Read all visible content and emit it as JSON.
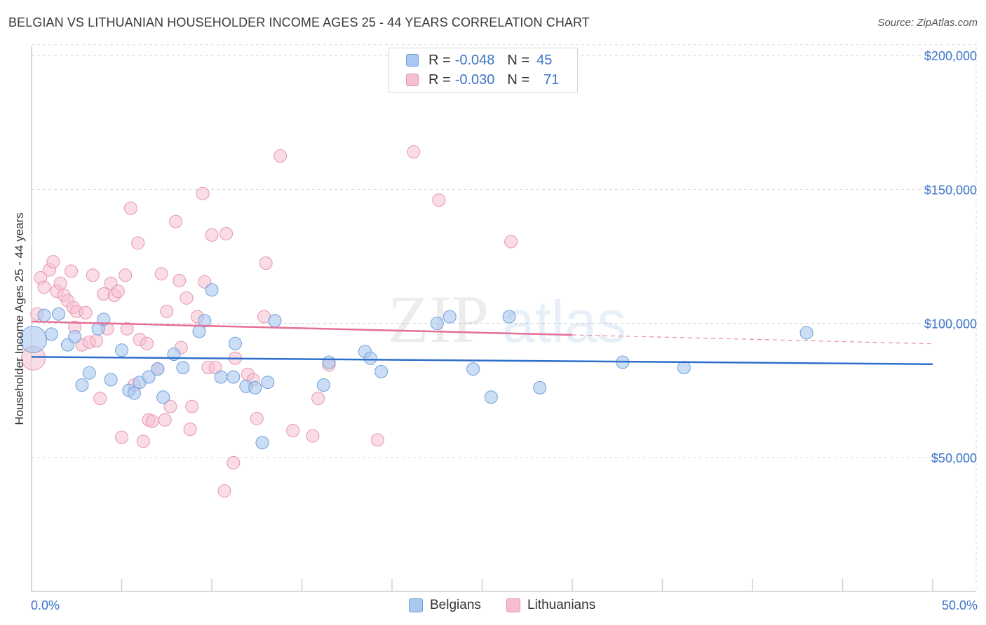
{
  "header": {
    "title": "BELGIAN VS LITHUANIAN HOUSEHOLDER INCOME AGES 25 - 44 YEARS CORRELATION CHART",
    "source": "Source: ZipAtlas.com"
  },
  "watermark": {
    "zip": "ZIP",
    "atlas": "atlas"
  },
  "legend": {
    "rows": [
      {
        "r_label": "R =",
        "r_value": "-0.048",
        "n_label": "N =",
        "n_value": "45"
      },
      {
        "r_label": "R =",
        "r_value": "-0.030",
        "n_label": "N =",
        "n_value": "71"
      }
    ]
  },
  "bottom_legend": {
    "belgians": "Belgians",
    "lithuanians": "Lithuanians"
  },
  "colors": {
    "belgian_fill": "#a9c8f0",
    "belgian_stroke": "#6f9fd8",
    "belgian_line": "#2f6fcc",
    "lithuanian_fill": "#f6bfd0",
    "lithuanian_stroke": "#e795b0",
    "lithuanian_line": "#e56f96",
    "tick_label": "#3b74c9",
    "grid": "#d9d9d9"
  },
  "chart_data": {
    "type": "scatter",
    "title": "BELGIAN VS LITHUANIAN HOUSEHOLDER INCOME AGES 25 - 44 YEARS CORRELATION CHART",
    "xlabel": "",
    "ylabel": "Householder Income Ages 25 - 44 years",
    "xlim": [
      0,
      50
    ],
    "ylim": [
      0,
      205000
    ],
    "x_tick_labels": [
      "0.0%",
      "50.0%"
    ],
    "y_ticks": [
      {
        "value": 50000,
        "label": "$50,000"
      },
      {
        "value": 100000,
        "label": "$100,000"
      },
      {
        "value": 150000,
        "label": "$150,000"
      },
      {
        "value": 200000,
        "label": "$200,000"
      }
    ],
    "series": [
      {
        "name": "Belgians",
        "r": -0.048,
        "n": 45,
        "trend": {
          "x": [
            0,
            50
          ],
          "y": [
            87500,
            84800
          ]
        },
        "points": [
          {
            "x": 0.1,
            "y": 94000,
            "big": true
          },
          {
            "x": 0.7,
            "y": 103000
          },
          {
            "x": 1.1,
            "y": 96000
          },
          {
            "x": 1.5,
            "y": 103500
          },
          {
            "x": 2.0,
            "y": 92000
          },
          {
            "x": 2.4,
            "y": 95000
          },
          {
            "x": 2.8,
            "y": 77000
          },
          {
            "x": 3.2,
            "y": 81500
          },
          {
            "x": 3.7,
            "y": 98000
          },
          {
            "x": 4.0,
            "y": 101500
          },
          {
            "x": 4.4,
            "y": 79000
          },
          {
            "x": 5.0,
            "y": 90000
          },
          {
            "x": 5.4,
            "y": 75000
          },
          {
            "x": 5.7,
            "y": 74000
          },
          {
            "x": 6.0,
            "y": 78000
          },
          {
            "x": 6.5,
            "y": 80000
          },
          {
            "x": 7.0,
            "y": 83000
          },
          {
            "x": 7.3,
            "y": 72500
          },
          {
            "x": 7.9,
            "y": 88500
          },
          {
            "x": 8.4,
            "y": 83500
          },
          {
            "x": 9.3,
            "y": 97000
          },
          {
            "x": 9.6,
            "y": 101000
          },
          {
            "x": 10.0,
            "y": 112500
          },
          {
            "x": 10.5,
            "y": 80000
          },
          {
            "x": 11.2,
            "y": 80000
          },
          {
            "x": 11.3,
            "y": 92500
          },
          {
            "x": 11.9,
            "y": 76500
          },
          {
            "x": 12.4,
            "y": 76000
          },
          {
            "x": 12.8,
            "y": 55500
          },
          {
            "x": 13.1,
            "y": 78000
          },
          {
            "x": 13.5,
            "y": 101000
          },
          {
            "x": 16.5,
            "y": 85500
          },
          {
            "x": 16.2,
            "y": 77000
          },
          {
            "x": 18.5,
            "y": 89500
          },
          {
            "x": 18.8,
            "y": 87000
          },
          {
            "x": 19.4,
            "y": 82000
          },
          {
            "x": 22.5,
            "y": 100000
          },
          {
            "x": 23.2,
            "y": 102500
          },
          {
            "x": 24.5,
            "y": 83000
          },
          {
            "x": 25.5,
            "y": 72500
          },
          {
            "x": 26.5,
            "y": 102500
          },
          {
            "x": 28.2,
            "y": 76000
          },
          {
            "x": 32.8,
            "y": 85500
          },
          {
            "x": 36.2,
            "y": 83500
          },
          {
            "x": 43.0,
            "y": 96500
          }
        ]
      },
      {
        "name": "Lithuanians",
        "r": -0.03,
        "n": 71,
        "trend": {
          "x": [
            0,
            30
          ],
          "y": [
            100700,
            95700
          ]
        },
        "trend_dashed": {
          "x": [
            30,
            50
          ],
          "y": [
            95700,
            92400
          ]
        },
        "points": [
          {
            "x": 0.1,
            "y": 87000,
            "big": true
          },
          {
            "x": 0.3,
            "y": 103500
          },
          {
            "x": 0.5,
            "y": 117000
          },
          {
            "x": 0.7,
            "y": 113500
          },
          {
            "x": 1.0,
            "y": 120000
          },
          {
            "x": 1.2,
            "y": 123000
          },
          {
            "x": 1.4,
            "y": 112000
          },
          {
            "x": 1.6,
            "y": 115000
          },
          {
            "x": 1.8,
            "y": 110500
          },
          {
            "x": 2.0,
            "y": 108500
          },
          {
            "x": 2.2,
            "y": 119500
          },
          {
            "x": 2.3,
            "y": 106000
          },
          {
            "x": 2.5,
            "y": 104500
          },
          {
            "x": 2.8,
            "y": 92000
          },
          {
            "x": 3.0,
            "y": 104000
          },
          {
            "x": 3.2,
            "y": 93000
          },
          {
            "x": 3.4,
            "y": 118000
          },
          {
            "x": 3.6,
            "y": 93500
          },
          {
            "x": 3.8,
            "y": 72000
          },
          {
            "x": 4.0,
            "y": 111000
          },
          {
            "x": 4.2,
            "y": 98000
          },
          {
            "x": 4.4,
            "y": 115000
          },
          {
            "x": 4.6,
            "y": 110500
          },
          {
            "x": 4.8,
            "y": 112000
          },
          {
            "x": 5.0,
            "y": 57500
          },
          {
            "x": 5.2,
            "y": 118000
          },
          {
            "x": 5.3,
            "y": 98000
          },
          {
            "x": 5.5,
            "y": 143000
          },
          {
            "x": 5.7,
            "y": 77000
          },
          {
            "x": 5.9,
            "y": 130000
          },
          {
            "x": 6.0,
            "y": 94000
          },
          {
            "x": 6.2,
            "y": 56000
          },
          {
            "x": 6.4,
            "y": 92500
          },
          {
            "x": 6.5,
            "y": 64000
          },
          {
            "x": 6.7,
            "y": 63500
          },
          {
            "x": 7.0,
            "y": 83000
          },
          {
            "x": 7.2,
            "y": 118500
          },
          {
            "x": 7.4,
            "y": 64000
          },
          {
            "x": 7.5,
            "y": 104500
          },
          {
            "x": 7.7,
            "y": 69000
          },
          {
            "x": 8.0,
            "y": 138000
          },
          {
            "x": 8.2,
            "y": 116000
          },
          {
            "x": 8.3,
            "y": 91000
          },
          {
            "x": 8.6,
            "y": 109500
          },
          {
            "x": 8.8,
            "y": 60500
          },
          {
            "x": 8.9,
            "y": 69000
          },
          {
            "x": 9.2,
            "y": 102500
          },
          {
            "x": 9.6,
            "y": 115500
          },
          {
            "x": 9.5,
            "y": 148500
          },
          {
            "x": 9.8,
            "y": 83500
          },
          {
            "x": 10.0,
            "y": 133000
          },
          {
            "x": 10.2,
            "y": 83500
          },
          {
            "x": 10.8,
            "y": 133500
          },
          {
            "x": 10.7,
            "y": 37500
          },
          {
            "x": 11.2,
            "y": 48000
          },
          {
            "x": 11.3,
            "y": 87000
          },
          {
            "x": 12.0,
            "y": 81000
          },
          {
            "x": 12.3,
            "y": 79000
          },
          {
            "x": 12.5,
            "y": 64500
          },
          {
            "x": 12.9,
            "y": 102500
          },
          {
            "x": 13.0,
            "y": 122500
          },
          {
            "x": 13.8,
            "y": 162500
          },
          {
            "x": 14.5,
            "y": 60000
          },
          {
            "x": 15.6,
            "y": 58000
          },
          {
            "x": 15.9,
            "y": 72000
          },
          {
            "x": 16.5,
            "y": 84500
          },
          {
            "x": 19.2,
            "y": 56500
          },
          {
            "x": 21.2,
            "y": 164000
          },
          {
            "x": 22.6,
            "y": 146000
          },
          {
            "x": 26.6,
            "y": 130500
          },
          {
            "x": 2.4,
            "y": 98500
          }
        ]
      }
    ]
  }
}
